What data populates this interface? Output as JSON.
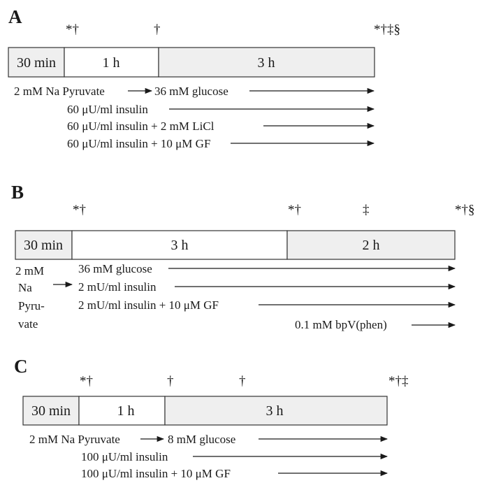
{
  "colors": {
    "shaded": "#efefef",
    "plain": "#ffffff",
    "ink": "#1a1a1a"
  },
  "panels": [
    {
      "letter": "A",
      "marks": [
        "*†",
        "†",
        "*†‡§"
      ],
      "segments": [
        "30 min",
        "1 h",
        "3 h"
      ],
      "treatments": [
        {
          "pre": "2 mM Na Pyruvate",
          "text": "36 mM glucose"
        },
        {
          "text": "60 μU/ml insulin"
        },
        {
          "text": "60 μU/ml insulin + 2 mM LiCl"
        },
        {
          "text": "60 μU/ml insulin + 10 μM GF"
        }
      ]
    },
    {
      "letter": "B",
      "marks": [
        "*†",
        "*†",
        "‡",
        "*†§"
      ],
      "segments": [
        "30 min",
        "3 h",
        "2 h"
      ],
      "pre_lines": [
        "2 mM",
        "Na",
        "Pyru-",
        "vate"
      ],
      "treatments": [
        {
          "text": "36 mM glucose"
        },
        {
          "text": "2 mU/ml insulin"
        },
        {
          "text": "2 mU/ml insulin + 10 μM GF"
        },
        {
          "text": "0.1 mM bpV(phen)"
        }
      ]
    },
    {
      "letter": "C",
      "marks": [
        "*†",
        "†",
        "†",
        "*†‡"
      ],
      "segments": [
        "30 min",
        "1 h",
        "3 h"
      ],
      "treatments": [
        {
          "pre": "2 mM Na Pyruvate",
          "text": "8 mM glucose"
        },
        {
          "text": "100 μU/ml insulin"
        },
        {
          "text": "100 μU/ml insulin + 10 μM GF"
        }
      ]
    }
  ]
}
